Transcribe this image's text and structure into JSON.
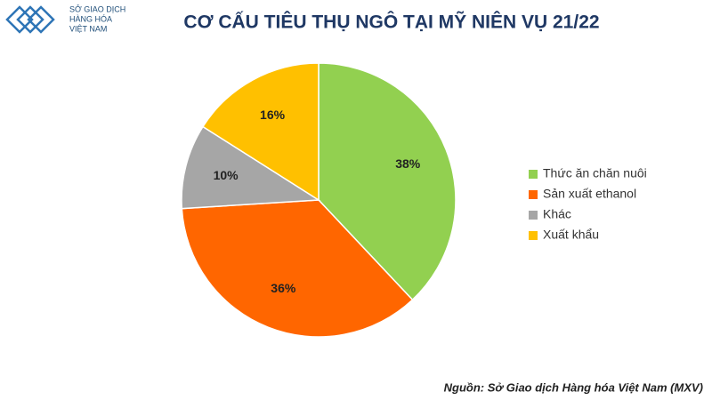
{
  "logo": {
    "lines": [
      "SỞ GIAO DỊCH",
      "HÀNG HÓA",
      "VIỆT NAM"
    ]
  },
  "chart_data": {
    "type": "pie",
    "title": "CƠ CẤU TIÊU THỤ NGÔ TẠI MỸ NIÊN VỤ 21/22",
    "categories": [
      "Thức ăn chăn nuôi",
      "Sản xuất ethanol",
      "Khác",
      "Xuất khẩu"
    ],
    "values": [
      38,
      36,
      10,
      16
    ],
    "value_labels": [
      "38%",
      "36%",
      "10%",
      "16%"
    ],
    "colors": [
      "#92d050",
      "#ff6600",
      "#a6a6a6",
      "#ffc000"
    ],
    "legend": "right"
  },
  "source": "Nguồn: Sở Giao dịch Hàng hóa Việt Nam (MXV)"
}
